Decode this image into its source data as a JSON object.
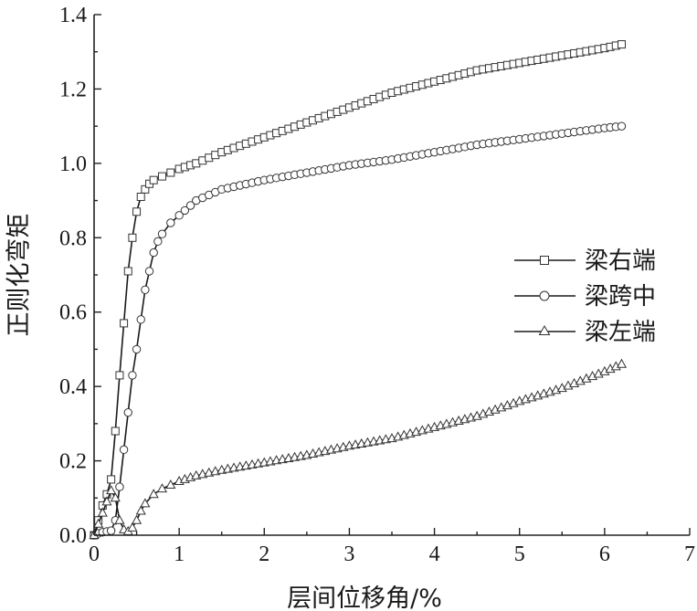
{
  "chart_data": {
    "type": "line",
    "title": "",
    "xlabel": "层间位移角/%",
    "ylabel": "正则化弯矩",
    "xlim": [
      0,
      7
    ],
    "ylim": [
      0,
      1.4
    ],
    "xticks": [
      "0",
      "1",
      "2",
      "3",
      "4",
      "5",
      "6",
      "7"
    ],
    "yticks": [
      "0.0",
      "0.2",
      "0.4",
      "0.6",
      "0.8",
      "1.0",
      "1.2",
      "1.4"
    ],
    "legend_position": "right-middle",
    "series": [
      {
        "name": "梁右端",
        "marker": "square",
        "x": [
          0.0,
          0.05,
          0.1,
          0.15,
          0.2,
          0.25,
          0.3,
          0.35,
          0.4,
          0.45,
          0.5,
          0.55,
          0.6,
          0.65,
          0.7,
          0.8,
          0.9,
          1.0,
          1.2,
          1.5,
          2.0,
          2.5,
          3.0,
          3.5,
          4.0,
          4.5,
          5.0,
          5.5,
          6.0,
          6.2
        ],
        "y": [
          0.0,
          0.04,
          0.08,
          0.11,
          0.15,
          0.28,
          0.43,
          0.57,
          0.71,
          0.8,
          0.87,
          0.91,
          0.93,
          0.945,
          0.955,
          0.965,
          0.975,
          0.985,
          1.0,
          1.03,
          1.07,
          1.11,
          1.15,
          1.19,
          1.22,
          1.25,
          1.27,
          1.29,
          1.31,
          1.32
        ]
      },
      {
        "name": "梁跨中",
        "marker": "circle",
        "x": [
          0.0,
          0.05,
          0.1,
          0.15,
          0.2,
          0.25,
          0.3,
          0.35,
          0.4,
          0.45,
          0.5,
          0.55,
          0.6,
          0.65,
          0.7,
          0.75,
          0.8,
          0.9,
          1.0,
          1.2,
          1.5,
          2.0,
          2.5,
          3.0,
          3.5,
          4.0,
          4.5,
          5.0,
          5.5,
          6.0,
          6.2
        ],
        "y": [
          0.0,
          0.005,
          0.008,
          0.01,
          0.012,
          0.04,
          0.13,
          0.23,
          0.33,
          0.43,
          0.5,
          0.58,
          0.66,
          0.71,
          0.76,
          0.79,
          0.81,
          0.84,
          0.86,
          0.9,
          0.93,
          0.955,
          0.975,
          0.995,
          1.01,
          1.03,
          1.05,
          1.065,
          1.08,
          1.095,
          1.1
        ]
      },
      {
        "name": "梁左端",
        "marker": "triangle",
        "x": [
          0.0,
          0.05,
          0.1,
          0.15,
          0.2,
          0.25,
          0.3,
          0.35,
          0.4,
          0.45,
          0.5,
          0.55,
          0.6,
          0.7,
          0.8,
          0.9,
          1.0,
          1.2,
          1.5,
          2.0,
          2.5,
          3.0,
          3.5,
          4.0,
          4.5,
          5.0,
          5.5,
          6.0,
          6.2
        ],
        "y": [
          0.0,
          0.03,
          0.06,
          0.09,
          0.12,
          0.1,
          0.04,
          0.015,
          0.01,
          0.02,
          0.04,
          0.065,
          0.085,
          0.11,
          0.125,
          0.135,
          0.145,
          0.16,
          0.175,
          0.195,
          0.215,
          0.24,
          0.26,
          0.29,
          0.32,
          0.36,
          0.395,
          0.44,
          0.46
        ]
      }
    ]
  }
}
